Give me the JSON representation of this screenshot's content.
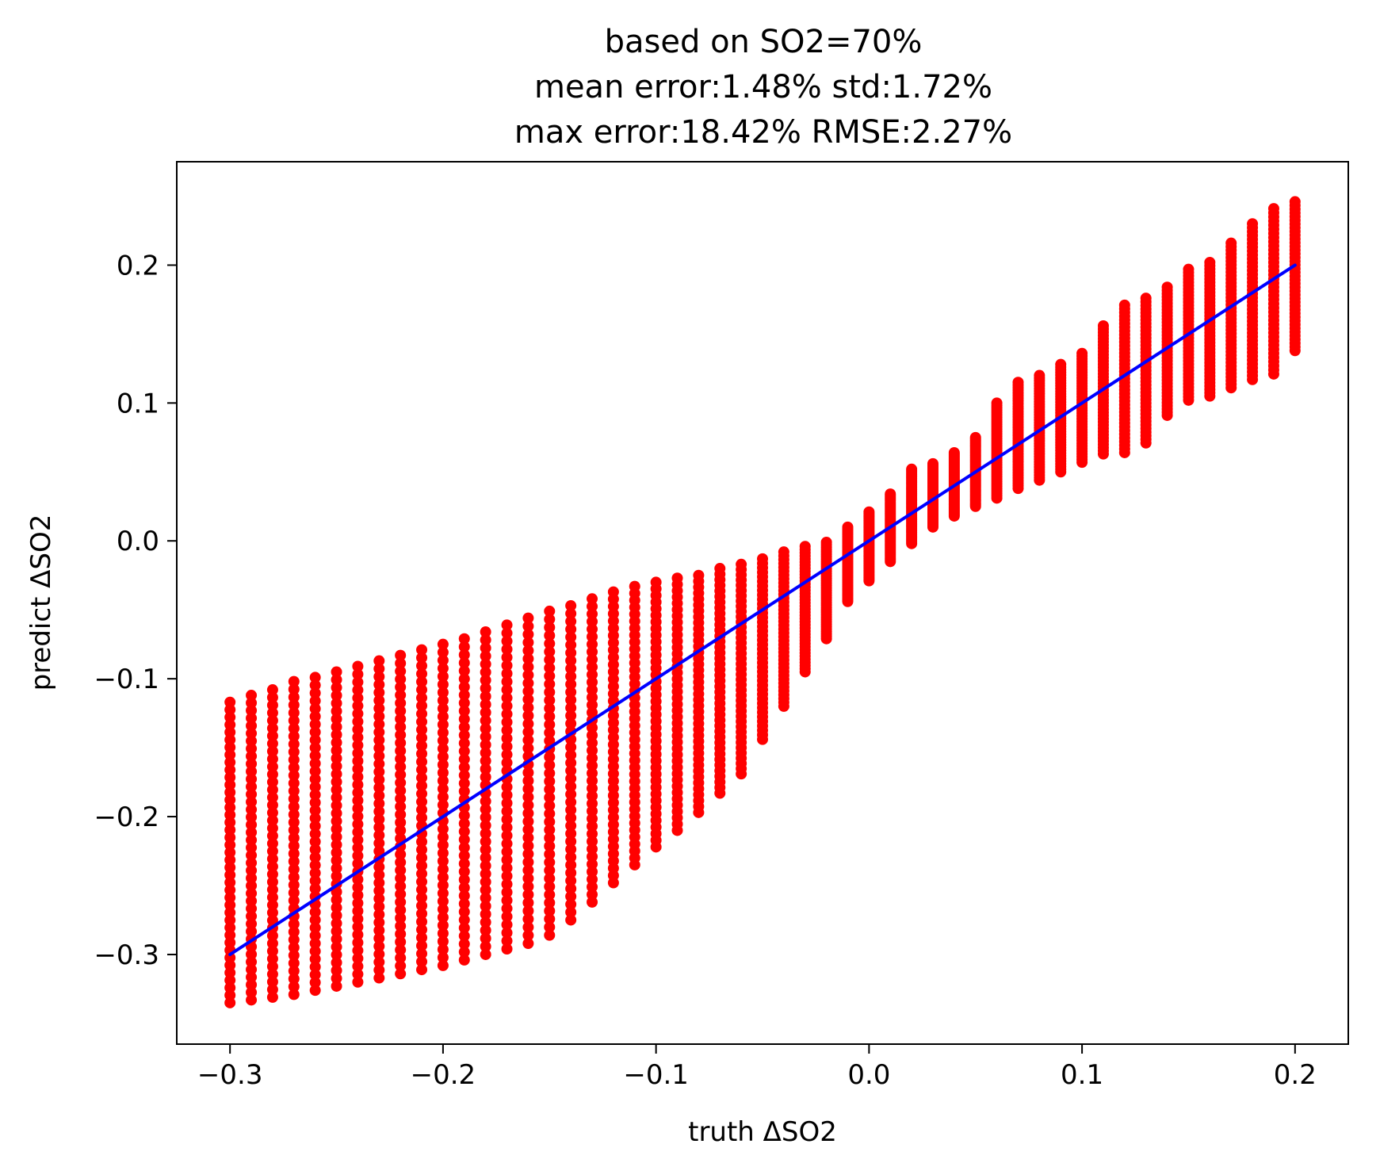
{
  "chart_data": {
    "type": "scatter",
    "title": [
      "based on SO2=70%",
      "mean error:1.48% std:1.72%",
      "max error:18.42% RMSE:2.27%"
    ],
    "xlabel": "truth ΔSO2",
    "ylabel": "predict ΔSO2",
    "xlim": [
      -0.325,
      0.225
    ],
    "ylim": [
      -0.365,
      0.275
    ],
    "xticks": [
      -0.3,
      -0.2,
      -0.1,
      0.0,
      0.1,
      0.2
    ],
    "xtick_labels": [
      "−0.3",
      "−0.2",
      "−0.1",
      "0.0",
      "0.1",
      "0.2"
    ],
    "yticks": [
      -0.3,
      -0.2,
      -0.1,
      0.0,
      0.1,
      0.2
    ],
    "ytick_labels": [
      "−0.3",
      "−0.2",
      "−0.1",
      "0.0",
      "0.1",
      "0.2"
    ],
    "grid": false,
    "series": [
      {
        "kind": "scatter-ranges",
        "color": "#ff0000",
        "points": [
          {
            "x": -0.3,
            "ymin": -0.335,
            "ymax": -0.117
          },
          {
            "x": -0.29,
            "ymin": -0.333,
            "ymax": -0.112
          },
          {
            "x": -0.28,
            "ymin": -0.331,
            "ymax": -0.108
          },
          {
            "x": -0.27,
            "ymin": -0.329,
            "ymax": -0.102
          },
          {
            "x": -0.26,
            "ymin": -0.326,
            "ymax": -0.099
          },
          {
            "x": -0.25,
            "ymin": -0.323,
            "ymax": -0.095
          },
          {
            "x": -0.24,
            "ymin": -0.32,
            "ymax": -0.091
          },
          {
            "x": -0.23,
            "ymin": -0.317,
            "ymax": -0.087
          },
          {
            "x": -0.22,
            "ymin": -0.314,
            "ymax": -0.083
          },
          {
            "x": -0.21,
            "ymin": -0.311,
            "ymax": -0.079
          },
          {
            "x": -0.2,
            "ymin": -0.308,
            "ymax": -0.075
          },
          {
            "x": -0.19,
            "ymin": -0.304,
            "ymax": -0.071
          },
          {
            "x": -0.18,
            "ymin": -0.3,
            "ymax": -0.066
          },
          {
            "x": -0.17,
            "ymin": -0.296,
            "ymax": -0.061
          },
          {
            "x": -0.16,
            "ymin": -0.292,
            "ymax": -0.056
          },
          {
            "x": -0.15,
            "ymin": -0.286,
            "ymax": -0.051
          },
          {
            "x": -0.14,
            "ymin": -0.275,
            "ymax": -0.047
          },
          {
            "x": -0.13,
            "ymin": -0.262,
            "ymax": -0.042
          },
          {
            "x": -0.12,
            "ymin": -0.248,
            "ymax": -0.037
          },
          {
            "x": -0.11,
            "ymin": -0.235,
            "ymax": -0.033
          },
          {
            "x": -0.1,
            "ymin": -0.222,
            "ymax": -0.03
          },
          {
            "x": -0.09,
            "ymin": -0.21,
            "ymax": -0.027
          },
          {
            "x": -0.08,
            "ymin": -0.197,
            "ymax": -0.025
          },
          {
            "x": -0.07,
            "ymin": -0.183,
            "ymax": -0.02
          },
          {
            "x": -0.06,
            "ymin": -0.169,
            "ymax": -0.017
          },
          {
            "x": -0.05,
            "ymin": -0.144,
            "ymax": -0.013
          },
          {
            "x": -0.04,
            "ymin": -0.12,
            "ymax": -0.008
          },
          {
            "x": -0.03,
            "ymin": -0.095,
            "ymax": -0.004
          },
          {
            "x": -0.02,
            "ymin": -0.071,
            "ymax": -0.001
          },
          {
            "x": -0.01,
            "ymin": -0.044,
            "ymax": 0.01
          },
          {
            "x": 0.0,
            "ymin": -0.029,
            "ymax": 0.021
          },
          {
            "x": 0.01,
            "ymin": -0.015,
            "ymax": 0.034
          },
          {
            "x": 0.02,
            "ymin": -0.002,
            "ymax": 0.052
          },
          {
            "x": 0.03,
            "ymin": 0.01,
            "ymax": 0.056
          },
          {
            "x": 0.04,
            "ymin": 0.018,
            "ymax": 0.064
          },
          {
            "x": 0.05,
            "ymin": 0.025,
            "ymax": 0.075
          },
          {
            "x": 0.06,
            "ymin": 0.031,
            "ymax": 0.1
          },
          {
            "x": 0.07,
            "ymin": 0.038,
            "ymax": 0.115
          },
          {
            "x": 0.08,
            "ymin": 0.044,
            "ymax": 0.12
          },
          {
            "x": 0.09,
            "ymin": 0.05,
            "ymax": 0.128
          },
          {
            "x": 0.1,
            "ymin": 0.057,
            "ymax": 0.136
          },
          {
            "x": 0.11,
            "ymin": 0.063,
            "ymax": 0.156
          },
          {
            "x": 0.12,
            "ymin": 0.064,
            "ymax": 0.171
          },
          {
            "x": 0.13,
            "ymin": 0.071,
            "ymax": 0.176
          },
          {
            "x": 0.14,
            "ymin": 0.091,
            "ymax": 0.184
          },
          {
            "x": 0.15,
            "ymin": 0.102,
            "ymax": 0.197
          },
          {
            "x": 0.16,
            "ymin": 0.105,
            "ymax": 0.202
          },
          {
            "x": 0.17,
            "ymin": 0.111,
            "ymax": 0.216
          },
          {
            "x": 0.18,
            "ymin": 0.117,
            "ymax": 0.23
          },
          {
            "x": 0.19,
            "ymin": 0.121,
            "ymax": 0.241
          },
          {
            "x": 0.2,
            "ymin": 0.138,
            "ymax": 0.246
          }
        ]
      },
      {
        "kind": "line",
        "color": "#0000ff",
        "x": [
          -0.3,
          0.2
        ],
        "y": [
          -0.3,
          0.2
        ]
      }
    ]
  }
}
